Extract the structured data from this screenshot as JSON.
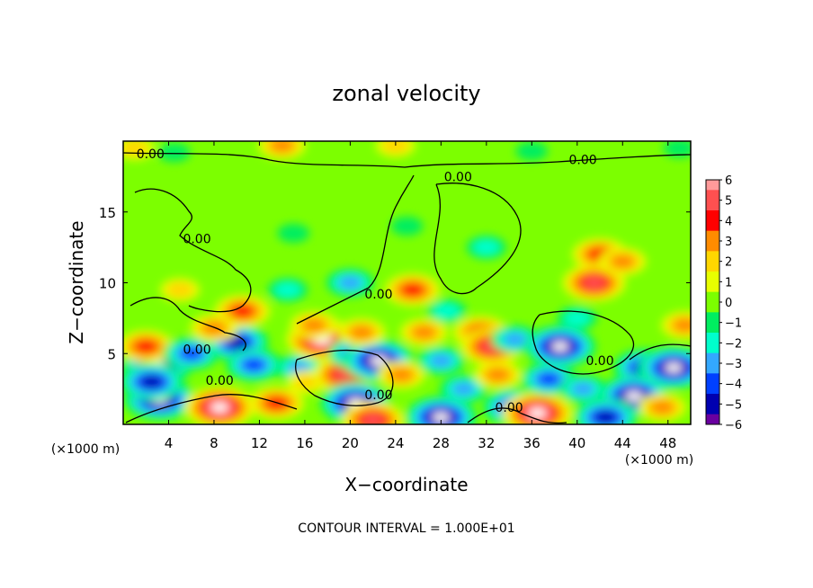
{
  "chart_data": {
    "type": "heatmap",
    "title": "zonal velocity",
    "xlabel": "X−coordinate",
    "ylabel": "Z−coordinate",
    "x_unit": "(×1000 m)",
    "y_unit": "(×1000 m)",
    "footer": "CONTOUR INTERVAL = 1.000E+01",
    "xlim": [
      0,
      50
    ],
    "ylim": [
      0,
      20
    ],
    "x_ticks": [
      "4",
      "8",
      "12",
      "16",
      "20",
      "24",
      "28",
      "32",
      "36",
      "40",
      "44",
      "48"
    ],
    "x_tick_values": [
      4,
      8,
      12,
      16,
      20,
      24,
      28,
      32,
      36,
      40,
      44,
      48
    ],
    "y_ticks": [
      "5",
      "10",
      "15"
    ],
    "y_tick_values": [
      5,
      10,
      15
    ],
    "colorbar": {
      "min": -6,
      "max": 6,
      "labels": [
        "6",
        "5",
        "4",
        "3",
        "2",
        "1",
        "0",
        "−1",
        "−2",
        "−3",
        "−4",
        "−5",
        "−6"
      ],
      "values": [
        6,
        5,
        4,
        3,
        2,
        1,
        0,
        -1,
        -2,
        -3,
        -4,
        -5,
        -6
      ],
      "colors": [
        "#ff9a9a",
        "#ff5050",
        "#ff0000",
        "#ff8c00",
        "#ffd700",
        "#e8ff00",
        "#7cff00",
        "#00ee60",
        "#00ffcc",
        "#33a8ff",
        "#0040ff",
        "#0000b0",
        "#6a00a0"
      ]
    },
    "contour_labels": [
      {
        "text": "0.00",
        "x": 2.4,
        "z": 19.1
      },
      {
        "text": "0.00",
        "x": 40.5,
        "z": 18.7
      },
      {
        "text": "0.00",
        "x": 29.5,
        "z": 17.5
      },
      {
        "text": "0.00",
        "x": 6.5,
        "z": 13.1
      },
      {
        "text": "0.00",
        "x": 22.5,
        "z": 9.2
      },
      {
        "text": "0.00",
        "x": 6.5,
        "z": 5.3
      },
      {
        "text": "0.00",
        "x": 8.5,
        "z": 3.1
      },
      {
        "text": "0.00",
        "x": 22.5,
        "z": 2.1
      },
      {
        "text": "0.00",
        "x": 34.0,
        "z": 1.2
      },
      {
        "text": "0.00",
        "x": 42.0,
        "z": 4.5
      }
    ],
    "features": [
      {
        "x": 3.0,
        "z": 4.2,
        "v": -6
      },
      {
        "x": 3.2,
        "z": 1.8,
        "v": -6
      },
      {
        "x": 2.0,
        "z": 5.5,
        "v": 4
      },
      {
        "x": 2.5,
        "z": 3.0,
        "v": -5
      },
      {
        "x": 6.0,
        "z": 5.0,
        "v": -4
      },
      {
        "x": 8.5,
        "z": 1.2,
        "v": 6
      },
      {
        "x": 10.0,
        "z": 5.8,
        "v": -5
      },
      {
        "x": 11.5,
        "z": 4.2,
        "v": -4
      },
      {
        "x": 10.5,
        "z": 8.0,
        "v": 4
      },
      {
        "x": 8.0,
        "z": 6.8,
        "v": 3
      },
      {
        "x": 13.5,
        "z": 1.5,
        "v": 4
      },
      {
        "x": 15.5,
        "z": 4.0,
        "v": -3
      },
      {
        "x": 16.2,
        "z": 3.0,
        "v": 2
      },
      {
        "x": 17.5,
        "z": 6.0,
        "v": 6
      },
      {
        "x": 16.8,
        "z": 7.0,
        "v": 3
      },
      {
        "x": 19.5,
        "z": 3.5,
        "v": 5
      },
      {
        "x": 20.5,
        "z": 1.5,
        "v": -6
      },
      {
        "x": 20.5,
        "z": 5.0,
        "v": -4
      },
      {
        "x": 22.5,
        "z": 4.5,
        "v": -6
      },
      {
        "x": 24.5,
        "z": 3.5,
        "v": 3
      },
      {
        "x": 21.0,
        "z": 6.5,
        "v": 3
      },
      {
        "x": 22.0,
        "z": 0.3,
        "v": 5
      },
      {
        "x": 25.5,
        "z": 9.5,
        "v": 4
      },
      {
        "x": 26.5,
        "z": 6.5,
        "v": 3
      },
      {
        "x": 28.5,
        "z": 8.0,
        "v": -2
      },
      {
        "x": 28.0,
        "z": 4.5,
        "v": -3
      },
      {
        "x": 31.5,
        "z": 6.5,
        "v": 4
      },
      {
        "x": 32.5,
        "z": 5.5,
        "v": 5
      },
      {
        "x": 30.0,
        "z": 2.5,
        "v": -3
      },
      {
        "x": 28.0,
        "z": 0.5,
        "v": -6
      },
      {
        "x": 33.0,
        "z": 3.5,
        "v": 3
      },
      {
        "x": 34.5,
        "z": 1.2,
        "v": -5
      },
      {
        "x": 34.5,
        "z": 6.0,
        "v": -3
      },
      {
        "x": 36.5,
        "z": 0.8,
        "v": 6
      },
      {
        "x": 38.5,
        "z": 5.5,
        "v": -6
      },
      {
        "x": 37.5,
        "z": 3.2,
        "v": -4
      },
      {
        "x": 40.5,
        "z": 2.5,
        "v": -3
      },
      {
        "x": 42.0,
        "z": 12.0,
        "v": 4
      },
      {
        "x": 41.5,
        "z": 10.0,
        "v": 5
      },
      {
        "x": 44.0,
        "z": 11.5,
        "v": 3
      },
      {
        "x": 46.0,
        "z": 4.0,
        "v": -5
      },
      {
        "x": 48.5,
        "z": 4.0,
        "v": -6
      },
      {
        "x": 45.0,
        "z": 2.0,
        "v": -6
      },
      {
        "x": 47.5,
        "z": 1.2,
        "v": 3
      },
      {
        "x": 49.5,
        "z": 7.0,
        "v": 3
      },
      {
        "x": 42.5,
        "z": 0.5,
        "v": -5
      },
      {
        "x": 32.0,
        "z": 12.5,
        "v": -2
      },
      {
        "x": 15.0,
        "z": 13.5,
        "v": -1
      },
      {
        "x": 14.5,
        "z": 9.5,
        "v": -2
      },
      {
        "x": 20.0,
        "z": 10.0,
        "v": -3
      },
      {
        "x": 5.0,
        "z": 9.5,
        "v": 2
      },
      {
        "x": 1.0,
        "z": 19.5,
        "v": 2
      },
      {
        "x": 14.0,
        "z": 19.7,
        "v": 3
      },
      {
        "x": 24.0,
        "z": 19.7,
        "v": 2
      },
      {
        "x": 36.0,
        "z": 19.3,
        "v": -1
      },
      {
        "x": 49.0,
        "z": 19.5,
        "v": -1
      },
      {
        "x": 4.5,
        "z": 19.2,
        "v": -1
      },
      {
        "x": 40.0,
        "z": 7.5,
        "v": -2
      },
      {
        "x": 25.0,
        "z": 14.0,
        "v": -1
      }
    ]
  }
}
